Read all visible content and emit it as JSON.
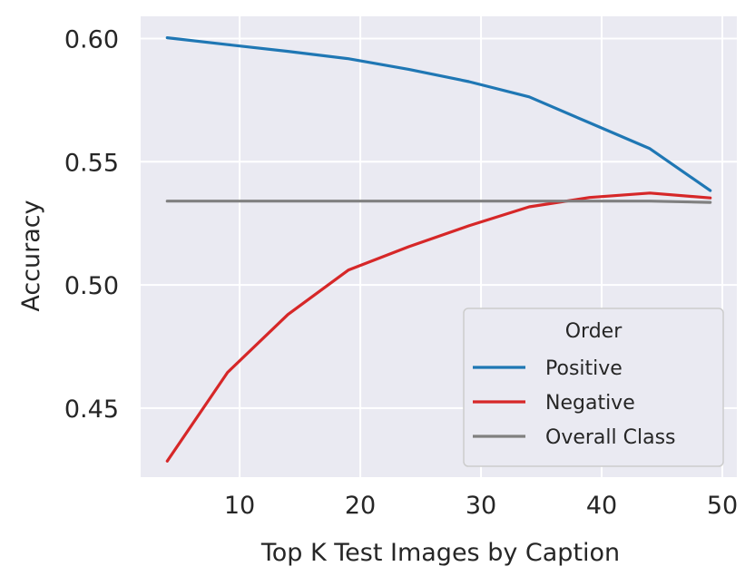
{
  "chart_data": {
    "type": "line",
    "title": "",
    "xlabel": "Top K Test Images by Caption",
    "ylabel": "Accuracy",
    "xlim": [
      1.8,
      51.2
    ],
    "ylim": [
      0.422,
      0.609
    ],
    "xticks": [
      10,
      20,
      30,
      40,
      50
    ],
    "xtick_labels": [
      "10",
      "20",
      "30",
      "40",
      "50"
    ],
    "yticks": [
      0.45,
      0.5,
      0.55,
      0.6
    ],
    "ytick_labels": [
      "0.45",
      "0.50",
      "0.55",
      "0.60"
    ],
    "grid": true,
    "legend": {
      "title": "Order",
      "placement": "lower-right"
    },
    "x": [
      4,
      9,
      14,
      19,
      24,
      29,
      34,
      39,
      44,
      49
    ],
    "series": [
      {
        "name": "Positive",
        "color": "#1f77b4",
        "values": [
          0.6003,
          0.5975,
          0.5948,
          0.5918,
          0.5875,
          0.5825,
          0.5763,
          0.5658,
          0.5553,
          0.5383
        ]
      },
      {
        "name": "Negative",
        "color": "#d62728",
        "values": [
          0.4285,
          0.4645,
          0.488,
          0.506,
          0.5155,
          0.524,
          0.5317,
          0.5355,
          0.5373,
          0.5353
        ]
      },
      {
        "name": "Overall Class",
        "color": "#808080",
        "values": [
          0.534,
          0.534,
          0.534,
          0.534,
          0.534,
          0.534,
          0.534,
          0.534,
          0.534,
          0.5335
        ]
      }
    ]
  }
}
